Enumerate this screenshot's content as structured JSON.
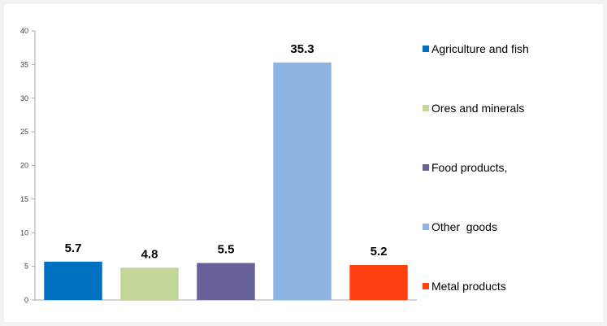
{
  "chart_data": {
    "type": "bar",
    "title": "",
    "xlabel": "",
    "ylabel": "",
    "ylim": [
      0,
      40
    ],
    "yticks": [
      0,
      5,
      10,
      15,
      20,
      25,
      30,
      35,
      40
    ],
    "grid": false,
    "legend_position": "right",
    "data_labels": true,
    "categories": [
      "Agriculture and fish",
      "Ores and minerals",
      "Food products,",
      "Other  goods",
      "Metal products"
    ],
    "values": [
      5.7,
      4.8,
      5.5,
      35.3,
      5.2
    ],
    "value_labels": [
      "5.7",
      "4.8",
      "5.5",
      "35.3",
      "5.2"
    ],
    "colors": [
      "#0070c0",
      "#c4d79b",
      "#676199",
      "#8eb4e3",
      "#ff4112"
    ]
  }
}
